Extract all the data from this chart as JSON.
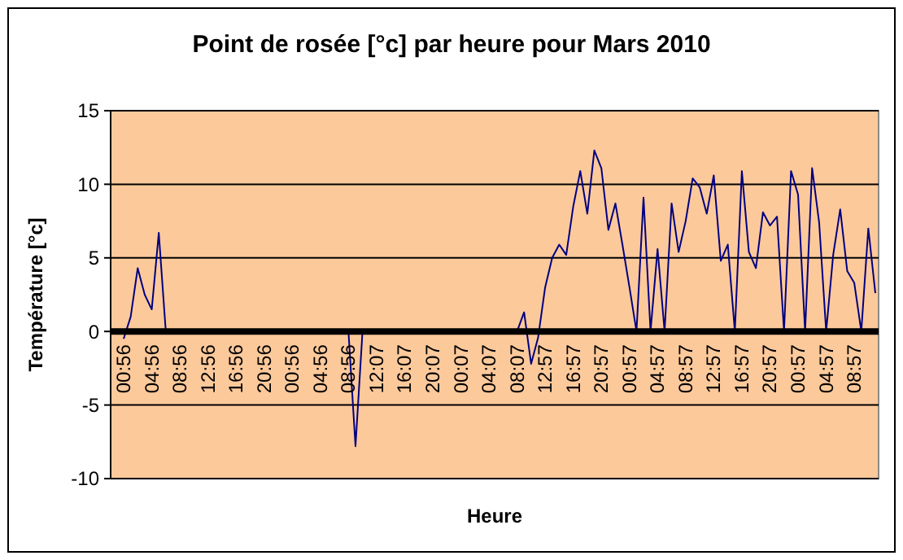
{
  "chart_data": {
    "type": "line",
    "title": "Point de rosée [°c] par heure pour Mars 2010",
    "xlabel": "Heure",
    "ylabel": "Température [°c]",
    "categories": [
      "00:56",
      null,
      null,
      null,
      "04:56",
      null,
      null,
      null,
      "08:56",
      null,
      null,
      null,
      "12:56",
      null,
      null,
      null,
      "16:56",
      null,
      null,
      null,
      "20:56",
      null,
      null,
      null,
      "00:56",
      null,
      null,
      null,
      "04:56",
      null,
      null,
      null,
      "08:56",
      null,
      null,
      null,
      "12:07",
      null,
      null,
      null,
      "16:07",
      null,
      null,
      null,
      "20:07",
      null,
      null,
      null,
      "00:07",
      null,
      null,
      null,
      "04:07",
      null,
      null,
      null,
      "08:07",
      null,
      null,
      null,
      "12:57",
      null,
      null,
      null,
      "16:57",
      null,
      null,
      null,
      "20:57",
      null,
      null,
      null,
      "00:57",
      null,
      null,
      null,
      "04:57",
      null,
      null,
      null,
      "08:57",
      null,
      null,
      null,
      "12:57",
      null,
      null,
      null,
      "16:57",
      null,
      null,
      null,
      "20:57",
      null,
      null,
      null,
      "00:57",
      null,
      null,
      null,
      "04:57",
      null,
      null,
      null,
      "08:57",
      null,
      null,
      null
    ],
    "series": [
      {
        "color": "#000080",
        "values": [
          -0.5,
          1,
          4.3,
          2.5,
          1.5,
          6.7,
          0,
          0,
          0,
          0,
          0,
          0,
          0,
          0,
          0,
          0,
          0,
          0,
          0,
          0,
          0,
          0,
          0,
          0,
          0,
          0,
          0,
          0,
          0,
          0,
          0,
          0,
          0,
          -7.8,
          0,
          0,
          0,
          0,
          0,
          0,
          0,
          0,
          0,
          0,
          0,
          0,
          0,
          0,
          0,
          0,
          0,
          0,
          0,
          0,
          0,
          0,
          0,
          1.3,
          -2.2,
          -0.4,
          3,
          5,
          5.9,
          5.2,
          8.5,
          10.9,
          8,
          12.3,
          11.1,
          6.9,
          8.7,
          5.9,
          3,
          0,
          9.1,
          0,
          5.6,
          0,
          8.7,
          5.4,
          7.5,
          10.4,
          9.8,
          8,
          10.6,
          4.8,
          5.9,
          0,
          10.9,
          5.4,
          4.3,
          8.1,
          7.2,
          7.8,
          0,
          10.9,
          9.3,
          0,
          11.1,
          7.4,
          0,
          5.2,
          8.3,
          4.1,
          3.3,
          0,
          7,
          2.6
        ]
      }
    ],
    "ylim": [
      -10,
      15
    ],
    "yticks": [
      -10,
      -5,
      0,
      5,
      10,
      15
    ],
    "grid": "y",
    "marker": "none",
    "line_style": "solid"
  }
}
